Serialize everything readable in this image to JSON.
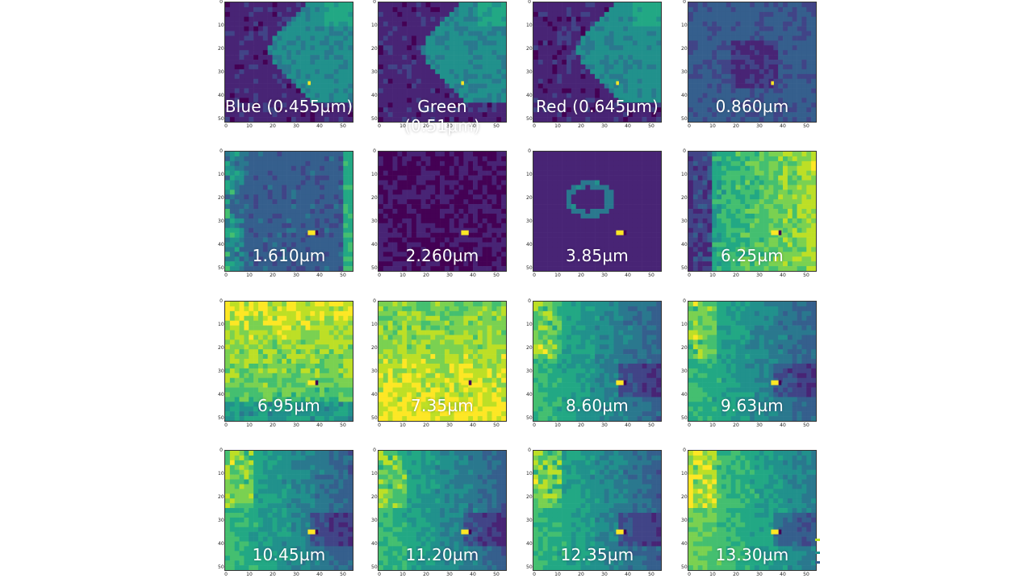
{
  "axis": {
    "yticks": [
      "0",
      "10",
      "20",
      "30",
      "40",
      "50"
    ],
    "xticks": [
      "0",
      "10",
      "20",
      "30",
      "40",
      "50"
    ]
  },
  "panels": [
    {
      "label": "Blue (0.455µm)",
      "type": "triangle"
    },
    {
      "label": "Green (0.51µm)",
      "type": "triangle"
    },
    {
      "label": "Red (0.645µm)",
      "type": "triangle"
    },
    {
      "label": "0.860µm",
      "type": "dark"
    },
    {
      "label": "1.610µm",
      "type": "swir"
    },
    {
      "label": "2.260µm",
      "type": "hot"
    },
    {
      "label": "3.85µm",
      "type": "ring"
    },
    {
      "label": "6.25µm",
      "type": "vapor"
    },
    {
      "label": "6.95µm",
      "type": "vapor2"
    },
    {
      "label": "7.35µm",
      "type": "vapor3"
    },
    {
      "label": "8.60µm",
      "type": "ir"
    },
    {
      "label": "9.63µm",
      "type": "ir"
    },
    {
      "label": "10.45µm",
      "type": "ir"
    },
    {
      "label": "11.20µm",
      "type": "ir"
    },
    {
      "label": "12.35µm",
      "type": "ir"
    },
    {
      "label": "13.30µm",
      "type": "ir2"
    }
  ],
  "colors": {
    "viridis": [
      "#440154",
      "#482475",
      "#414487",
      "#355f8d",
      "#2a788e",
      "#21918c",
      "#22a884",
      "#44bf70",
      "#7ad151",
      "#bddf26",
      "#fde725"
    ]
  }
}
